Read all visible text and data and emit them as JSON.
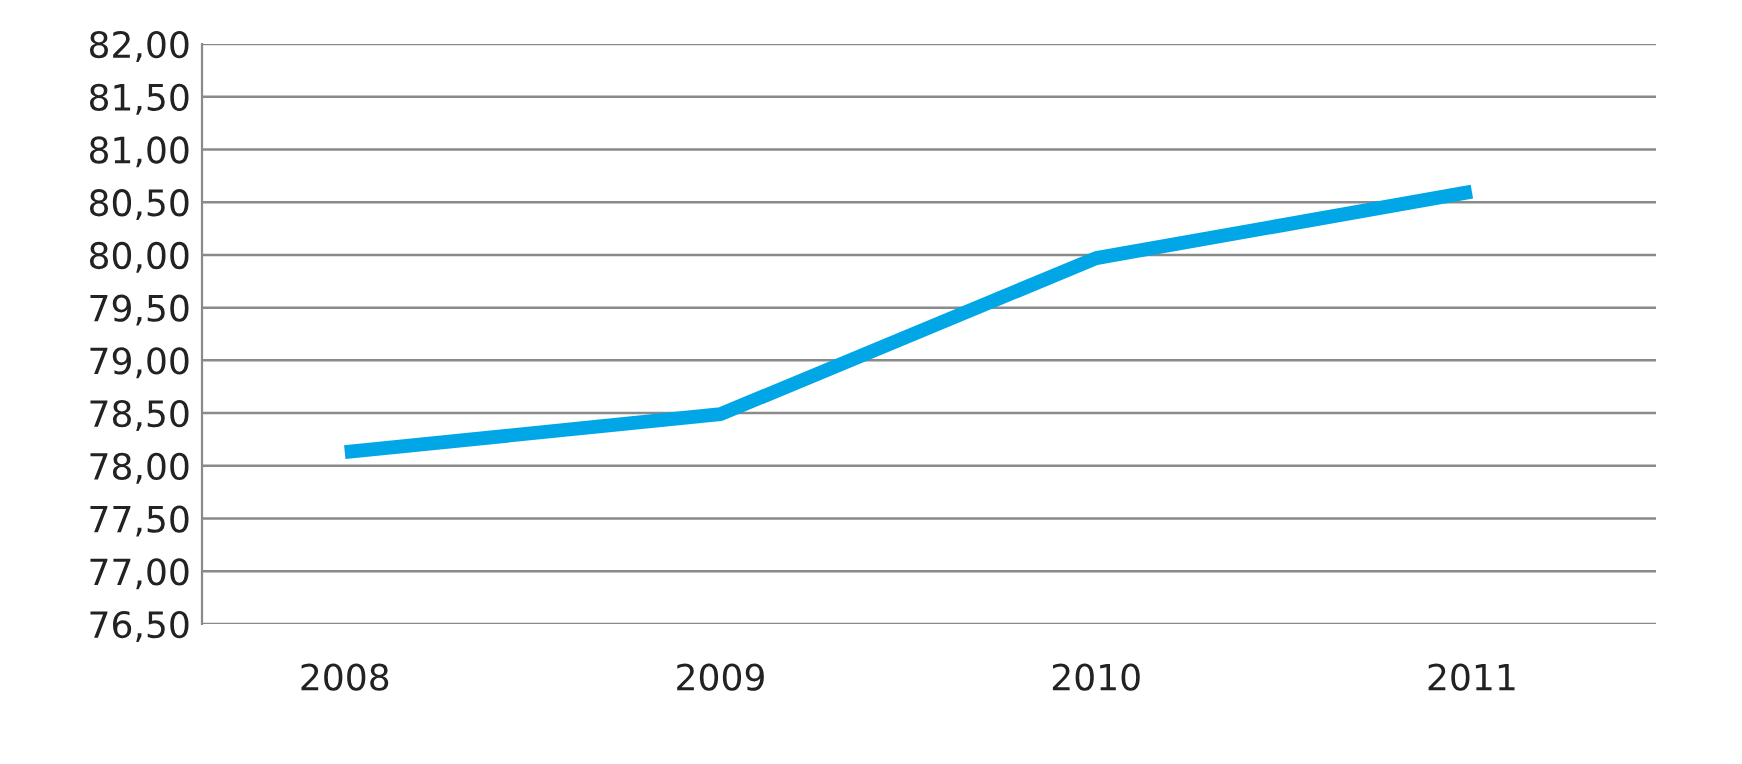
{
  "chart_data": {
    "type": "line",
    "categories": [
      "2008",
      "2009",
      "2010",
      "2011"
    ],
    "series": [
      {
        "color": "#00a6e6",
        "values": [
          78.13,
          78.49,
          79.97,
          80.6
        ]
      }
    ],
    "ylim": [
      76.5,
      82
    ],
    "yticks": [
      {
        "value": 76.5,
        "label": "76,50"
      },
      {
        "value": 77,
        "label": "77,00"
      },
      {
        "value": 77.5,
        "label": "77,50"
      },
      {
        "value": 78,
        "label": "78,00"
      },
      {
        "value": 78.5,
        "label": "78,50"
      },
      {
        "value": 79,
        "label": "79,00"
      },
      {
        "value": 79.5,
        "label": "79,50"
      },
      {
        "value": 80,
        "label": "80,00"
      },
      {
        "value": 80.5,
        "label": "80,50"
      },
      {
        "value": 81,
        "label": "81,00"
      },
      {
        "value": 81.5,
        "label": "81,50"
      },
      {
        "value": 82,
        "label": "82,00"
      }
    ],
    "grid": "y",
    "marker": "none",
    "line_style": "solid",
    "legend": false
  }
}
